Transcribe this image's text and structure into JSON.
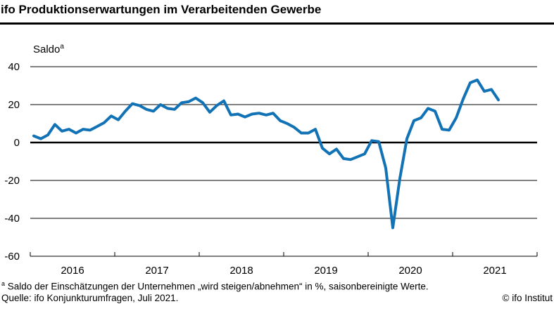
{
  "header": {
    "title": "ifo Produktionserwartungen im Verarbeitenden Gewerbe"
  },
  "chart": {
    "saldo_label": "Saldo",
    "saldo_sup": "a"
  },
  "chart_data": {
    "type": "line",
    "title": "ifo Produktionserwartungen im Verarbeitenden Gewerbe",
    "ylabel": "Saldo (a)",
    "frequency": "monthly",
    "x_start": "2016-01",
    "x_end": "2021-07",
    "ylim": [
      -60,
      45
    ],
    "yticks": [
      40,
      20,
      0,
      -20,
      -40,
      -60
    ],
    "xtick_years": [
      "2016",
      "2017",
      "2018",
      "2019",
      "2020",
      "2021"
    ],
    "grid": "horizontal",
    "legend": "none",
    "series": [
      {
        "name": "Produktionserwartungen",
        "color": "#1272b6",
        "data": [
          {
            "year": 2016,
            "values": [
              3.5,
              2,
              4,
              9.5,
              6,
              7,
              5,
              7,
              6.5,
              8.5,
              10.5,
              14
            ]
          },
          {
            "year": 2017,
            "values": [
              12,
              16.5,
              20.5,
              19.5,
              17.5,
              16.5,
              20,
              18,
              17.5,
              21,
              21.5,
              23.5
            ]
          },
          {
            "year": 2018,
            "values": [
              21,
              16,
              19.5,
              22,
              14.5,
              15,
              13.5,
              15,
              15.5,
              14.5,
              15.5,
              11.5
            ]
          },
          {
            "year": 2019,
            "values": [
              10,
              8,
              5,
              5,
              7,
              -3,
              -6,
              -3.5,
              -8.5,
              -9,
              -7.5,
              -6
            ]
          },
          {
            "year": 2020,
            "values": [
              1,
              0.5,
              -13.5,
              -45,
              -19,
              2,
              11.5,
              13,
              18,
              16.5,
              7,
              6.5
            ]
          },
          {
            "year": 2021,
            "values": [
              13,
              23,
              31.5,
              33,
              27,
              28,
              22.5
            ]
          }
        ]
      }
    ]
  },
  "footnotes": {
    "note_sup": "a",
    "note_text": "Saldo der Einschätzungen der Unternehmen „wird steigen/abnehmen“ in %, saisonbereinigte Werte.",
    "source": "Quelle: ifo Konjunkturumfragen, Juli 2021.",
    "copyright": "© ifo Institut"
  }
}
